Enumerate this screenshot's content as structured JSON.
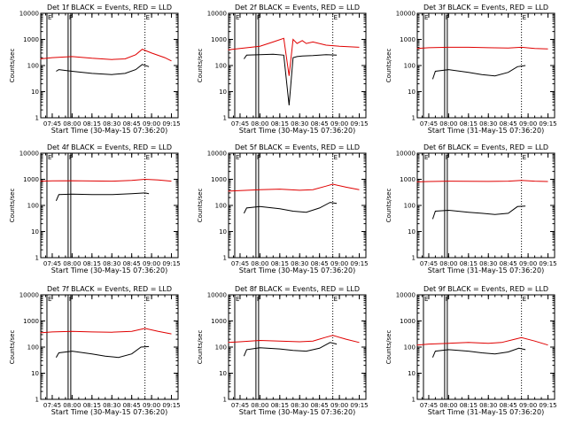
{
  "chart_data": [
    {
      "type": "line",
      "title": "Det 1f BLACK = Events, RED = LLD",
      "xlabel": "Start Time (30-May-15 07:36:20)",
      "ylabel": "Counts/sec",
      "x_ticks": [
        "07:45",
        "08:00",
        "08:15",
        "08:30",
        "08:45",
        "09:00",
        "09:15"
      ],
      "y_ticks": [
        "1",
        "10",
        "100",
        "1000",
        "10000"
      ],
      "ylim": [
        1,
        10000
      ],
      "xlim": [
        "07:36:20",
        "09:20"
      ],
      "y_scale": "log",
      "markers": [
        {
          "label": "E",
          "time": "07:41",
          "style": "solid"
        },
        {
          "label": "F",
          "time": "07:57",
          "style": "solid"
        },
        {
          "label": "",
          "time": "07:59",
          "style": "solid"
        },
        {
          "label": "E",
          "time": "08:55",
          "style": "dotted"
        }
      ],
      "series": [
        {
          "color": "#e00000",
          "x": [
            "07:36",
            "07:45",
            "08:00",
            "08:15",
            "08:30",
            "08:40",
            "08:48",
            "08:53",
            "09:00",
            "09:10",
            "09:15"
          ],
          "y": [
            180,
            200,
            220,
            190,
            170,
            180,
            260,
            420,
            300,
            200,
            150
          ]
        },
        {
          "color": "#000000",
          "x": [
            "07:48",
            "07:50",
            "08:00",
            "08:15",
            "08:30",
            "08:40",
            "08:48",
            "08:53",
            "08:58"
          ],
          "y": [
            60,
            70,
            60,
            50,
            45,
            50,
            70,
            110,
            90
          ]
        }
      ]
    },
    {
      "type": "line",
      "title": "Det 2f BLACK = Events, RED = LLD",
      "xlabel": "Start Time (30-May-15 07:36:20)",
      "ylabel": "Counts/sec",
      "x_ticks": [
        "07:45",
        "08:00",
        "08:15",
        "08:30",
        "08:45",
        "09:00",
        "09:15"
      ],
      "y_ticks": [
        "1",
        "10",
        "100",
        "1000",
        "10000"
      ],
      "ylim": [
        1,
        10000
      ],
      "xlim": [
        "07:36:20",
        "09:20"
      ],
      "y_scale": "log",
      "markers": [
        {
          "label": "E",
          "time": "07:41",
          "style": "solid"
        },
        {
          "label": "F",
          "time": "07:57",
          "style": "solid"
        },
        {
          "label": "",
          "time": "07:59",
          "style": "solid"
        },
        {
          "label": "E",
          "time": "08:55",
          "style": "dotted"
        }
      ],
      "series": [
        {
          "color": "#e00000",
          "x": [
            "07:36",
            "07:45",
            "08:00",
            "08:10",
            "08:18",
            "08:22",
            "08:25",
            "08:28",
            "08:32",
            "08:35",
            "08:40",
            "08:50",
            "09:00",
            "09:15"
          ],
          "y": [
            400,
            450,
            550,
            800,
            1100,
            40,
            1000,
            700,
            900,
            700,
            800,
            600,
            550,
            500
          ]
        },
        {
          "color": "#000000",
          "x": [
            "07:48",
            "07:50",
            "08:00",
            "08:10",
            "08:18",
            "08:22",
            "08:25",
            "08:28",
            "08:32",
            "08:40",
            "08:50",
            "08:58"
          ],
          "y": [
            180,
            250,
            260,
            270,
            250,
            3,
            200,
            220,
            230,
            240,
            260,
            250
          ]
        }
      ]
    },
    {
      "type": "line",
      "title": "Det 3f BLACK = Events, RED = LLD",
      "xlabel": "Start Time (31-May-15 07:36:20)",
      "ylabel": "Counts/sec",
      "x_ticks": [
        "07:45",
        "08:00",
        "08:15",
        "08:30",
        "08:45",
        "09:00",
        "09:15"
      ],
      "y_ticks": [
        "1",
        "10",
        "100",
        "1000",
        "10000"
      ],
      "ylim": [
        1,
        10000
      ],
      "xlim": [
        "07:36:20",
        "09:20"
      ],
      "y_scale": "log",
      "markers": [
        {
          "label": "E",
          "time": "07:41",
          "style": "solid"
        },
        {
          "label": "F",
          "time": "07:57",
          "style": "solid"
        },
        {
          "label": "",
          "time": "07:59",
          "style": "solid"
        },
        {
          "label": "E",
          "time": "08:55",
          "style": "dotted"
        }
      ],
      "series": [
        {
          "color": "#e00000",
          "x": [
            "07:36",
            "07:45",
            "08:00",
            "08:15",
            "08:30",
            "08:45",
            "08:55",
            "09:05",
            "09:15"
          ],
          "y": [
            450,
            480,
            500,
            500,
            480,
            470,
            500,
            450,
            430
          ]
        },
        {
          "color": "#000000",
          "x": [
            "07:48",
            "07:50",
            "08:00",
            "08:15",
            "08:25",
            "08:35",
            "08:45",
            "08:52",
            "08:58"
          ],
          "y": [
            30,
            60,
            70,
            55,
            45,
            40,
            55,
            90,
            100
          ]
        }
      ]
    },
    {
      "type": "line",
      "title": "Det 4f BLACK = Events, RED = LLD",
      "xlabel": "Start Time (30-May-15 07:36:20)",
      "ylabel": "Counts/sec",
      "x_ticks": [
        "07:45",
        "08:00",
        "08:15",
        "08:30",
        "08:45",
        "09:00",
        "09:15"
      ],
      "y_ticks": [
        "1",
        "10",
        "100",
        "1000",
        "10000"
      ],
      "ylim": [
        1,
        10000
      ],
      "xlim": [
        "07:36:20",
        "09:20"
      ],
      "y_scale": "log",
      "markers": [
        {
          "label": "E",
          "time": "07:41",
          "style": "solid"
        },
        {
          "label": "F",
          "time": "07:57",
          "style": "solid"
        },
        {
          "label": "",
          "time": "07:59",
          "style": "solid"
        },
        {
          "label": "E",
          "time": "08:55",
          "style": "dotted"
        }
      ],
      "series": [
        {
          "color": "#e00000",
          "x": [
            "07:36",
            "07:45",
            "08:00",
            "08:15",
            "08:30",
            "08:45",
            "08:55",
            "09:05",
            "09:15"
          ],
          "y": [
            850,
            870,
            880,
            860,
            850,
            900,
            1000,
            950,
            850
          ]
        },
        {
          "color": "#000000",
          "x": [
            "07:48",
            "07:50",
            "08:00",
            "08:15",
            "08:30",
            "08:45",
            "08:55",
            "08:58"
          ],
          "y": [
            150,
            260,
            270,
            260,
            260,
            280,
            300,
            280
          ]
        }
      ]
    },
    {
      "type": "line",
      "title": "Det 5f BLACK = Events, RED = LLD",
      "xlabel": "Start Time (30-May-15 07:36:20)",
      "ylabel": "Counts/sec",
      "x_ticks": [
        "07:45",
        "08:00",
        "08:15",
        "08:30",
        "08:45",
        "09:00",
        "09:15"
      ],
      "y_ticks": [
        "1",
        "10",
        "100",
        "1000",
        "10000"
      ],
      "ylim": [
        1,
        10000
      ],
      "xlim": [
        "07:36:20",
        "09:20"
      ],
      "y_scale": "log",
      "markers": [
        {
          "label": "E",
          "time": "07:41",
          "style": "solid"
        },
        {
          "label": "F",
          "time": "07:57",
          "style": "solid"
        },
        {
          "label": "",
          "time": "07:59",
          "style": "solid"
        },
        {
          "label": "E",
          "time": "08:55",
          "style": "dotted"
        }
      ],
      "series": [
        {
          "color": "#e00000",
          "x": [
            "07:36",
            "07:45",
            "08:00",
            "08:15",
            "08:30",
            "08:40",
            "08:50",
            "08:55",
            "09:05",
            "09:15"
          ],
          "y": [
            350,
            370,
            400,
            420,
            380,
            400,
            550,
            650,
            500,
            400
          ]
        },
        {
          "color": "#000000",
          "x": [
            "07:48",
            "07:50",
            "08:00",
            "08:15",
            "08:25",
            "08:35",
            "08:45",
            "08:53",
            "08:58"
          ],
          "y": [
            50,
            80,
            90,
            75,
            60,
            55,
            80,
            130,
            120
          ]
        }
      ]
    },
    {
      "type": "line",
      "title": "Det 6f BLACK = Events, RED = LLD",
      "xlabel": "Start Time (31-May-15 07:36:20)",
      "ylabel": "Counts/sec",
      "x_ticks": [
        "07:45",
        "08:00",
        "08:15",
        "08:30",
        "08:45",
        "09:00",
        "09:15"
      ],
      "y_ticks": [
        "1",
        "10",
        "100",
        "1000",
        "10000"
      ],
      "ylim": [
        1,
        10000
      ],
      "xlim": [
        "07:36:20",
        "09:20"
      ],
      "y_scale": "log",
      "markers": [
        {
          "label": "E",
          "time": "07:41",
          "style": "solid"
        },
        {
          "label": "F",
          "time": "07:57",
          "style": "solid"
        },
        {
          "label": "",
          "time": "07:59",
          "style": "solid"
        },
        {
          "label": "E",
          "time": "08:55",
          "style": "dotted"
        }
      ],
      "series": [
        {
          "color": "#e00000",
          "x": [
            "07:36",
            "07:45",
            "08:00",
            "08:15",
            "08:30",
            "08:45",
            "08:55",
            "09:05",
            "09:15"
          ],
          "y": [
            800,
            820,
            850,
            840,
            830,
            850,
            900,
            850,
            820
          ]
        },
        {
          "color": "#000000",
          "x": [
            "07:48",
            "07:50",
            "08:00",
            "08:15",
            "08:25",
            "08:35",
            "08:45",
            "08:52",
            "08:58"
          ],
          "y": [
            30,
            60,
            65,
            55,
            50,
            45,
            50,
            90,
            95
          ]
        }
      ]
    },
    {
      "type": "line",
      "title": "Det 7f BLACK = Events, RED = LLD",
      "xlabel": "Start Time (30-May-15 07:36:20)",
      "ylabel": "Counts/sec",
      "x_ticks": [
        "07:45",
        "08:00",
        "08:15",
        "08:30",
        "08:45",
        "09:00",
        "09:15"
      ],
      "y_ticks": [
        "1",
        "10",
        "100",
        "1000",
        "10000"
      ],
      "ylim": [
        1,
        10000
      ],
      "xlim": [
        "07:36:20",
        "09:20"
      ],
      "y_scale": "log",
      "markers": [
        {
          "label": "E",
          "time": "07:41",
          "style": "solid"
        },
        {
          "label": "F",
          "time": "07:57",
          "style": "solid"
        },
        {
          "label": "",
          "time": "07:59",
          "style": "solid"
        },
        {
          "label": "E",
          "time": "08:55",
          "style": "dotted"
        }
      ],
      "series": [
        {
          "color": "#e00000",
          "x": [
            "07:36",
            "07:45",
            "08:00",
            "08:15",
            "08:30",
            "08:45",
            "08:55",
            "09:05",
            "09:15"
          ],
          "y": [
            350,
            380,
            400,
            380,
            370,
            400,
            520,
            400,
            320
          ]
        },
        {
          "color": "#000000",
          "x": [
            "07:48",
            "07:50",
            "08:00",
            "08:15",
            "08:25",
            "08:35",
            "08:45",
            "08:52",
            "08:58"
          ],
          "y": [
            40,
            60,
            70,
            55,
            45,
            40,
            55,
            100,
            105
          ]
        }
      ]
    },
    {
      "type": "line",
      "title": "Det 8f BLACK = Events, RED = LLD",
      "xlabel": "Start Time (30-May-15 07:36:20)",
      "ylabel": "Counts/sec",
      "x_ticks": [
        "07:45",
        "08:00",
        "08:15",
        "08:30",
        "08:45",
        "09:00",
        "09:15"
      ],
      "y_ticks": [
        "1",
        "10",
        "100",
        "1000",
        "10000"
      ],
      "ylim": [
        1,
        10000
      ],
      "xlim": [
        "07:36:20",
        "09:20"
      ],
      "y_scale": "log",
      "markers": [
        {
          "label": "E",
          "time": "07:41",
          "style": "solid"
        },
        {
          "label": "F",
          "time": "07:57",
          "style": "solid"
        },
        {
          "label": "",
          "time": "07:59",
          "style": "solid"
        },
        {
          "label": "E",
          "time": "08:55",
          "style": "dotted"
        }
      ],
      "series": [
        {
          "color": "#e00000",
          "x": [
            "07:36",
            "07:45",
            "08:00",
            "08:15",
            "08:30",
            "08:40",
            "08:50",
            "08:55",
            "09:05",
            "09:15"
          ],
          "y": [
            150,
            160,
            180,
            170,
            160,
            170,
            240,
            280,
            200,
            150
          ]
        },
        {
          "color": "#000000",
          "x": [
            "07:48",
            "07:50",
            "08:00",
            "08:15",
            "08:25",
            "08:35",
            "08:45",
            "08:53",
            "08:58"
          ],
          "y": [
            45,
            80,
            95,
            85,
            75,
            70,
            90,
            150,
            130
          ]
        }
      ]
    },
    {
      "type": "line",
      "title": "Det 9f BLACK = Events, RED = LLD",
      "xlabel": "Start Time (31-May-15 07:36:20)",
      "ylabel": "Counts/sec",
      "x_ticks": [
        "07:45",
        "08:00",
        "08:15",
        "08:30",
        "08:45",
        "09:00",
        "09:15"
      ],
      "y_ticks": [
        "1",
        "10",
        "100",
        "1000",
        "10000"
      ],
      "ylim": [
        1,
        10000
      ],
      "xlim": [
        "07:36:20",
        "09:20"
      ],
      "y_scale": "log",
      "markers": [
        {
          "label": "E",
          "time": "07:41",
          "style": "solid"
        },
        {
          "label": "F",
          "time": "07:57",
          "style": "solid"
        },
        {
          "label": "",
          "time": "07:59",
          "style": "solid"
        },
        {
          "label": "E",
          "time": "08:55",
          "style": "dotted"
        }
      ],
      "series": [
        {
          "color": "#e00000",
          "x": [
            "07:36",
            "07:45",
            "08:00",
            "08:15",
            "08:30",
            "08:40",
            "08:50",
            "08:55",
            "09:05",
            "09:15"
          ],
          "y": [
            120,
            130,
            140,
            150,
            140,
            150,
            200,
            230,
            170,
            120
          ]
        },
        {
          "color": "#000000",
          "x": [
            "07:48",
            "07:50",
            "08:00",
            "08:15",
            "08:25",
            "08:35",
            "08:45",
            "08:53",
            "08:58"
          ],
          "y": [
            40,
            70,
            80,
            70,
            60,
            55,
            65,
            90,
            80
          ]
        }
      ]
    }
  ]
}
